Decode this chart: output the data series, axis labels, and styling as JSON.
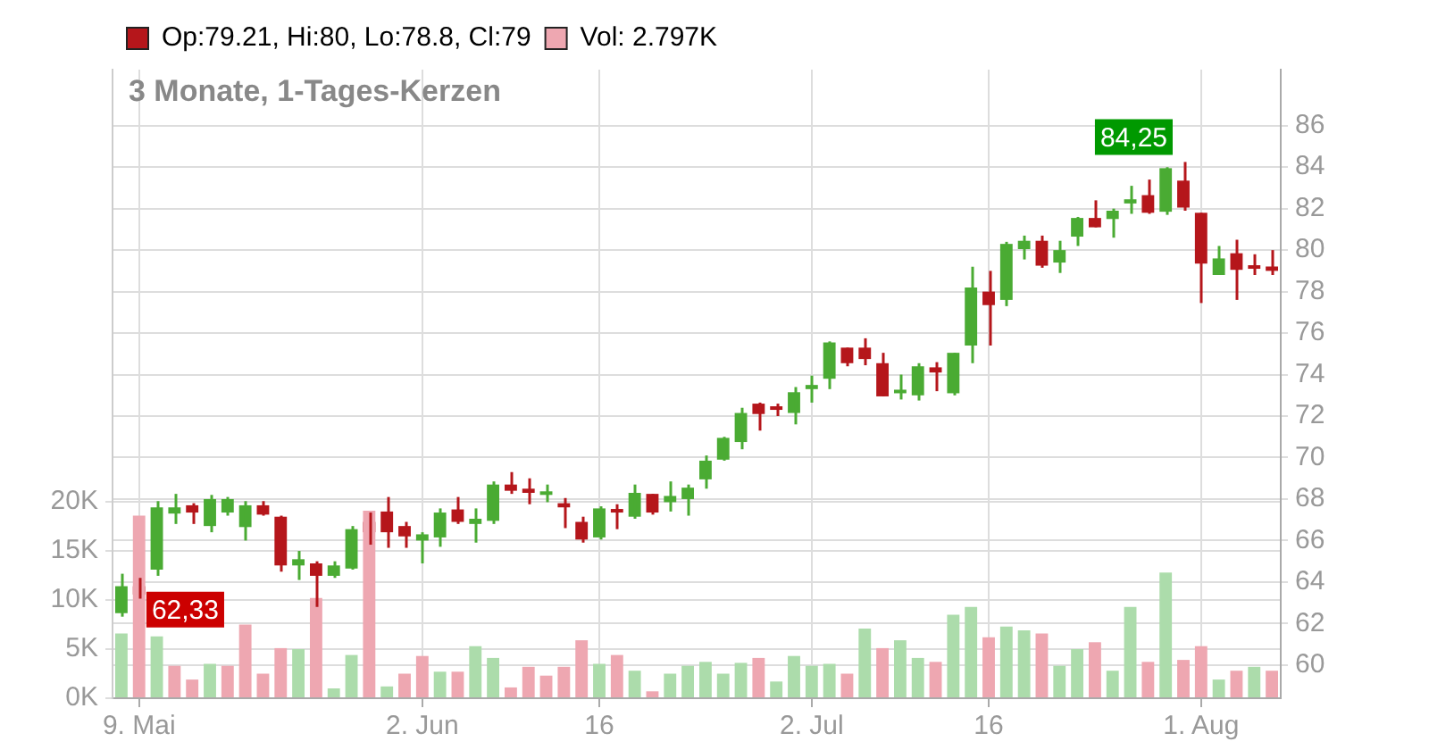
{
  "chart_data": {
    "type": "candlestick",
    "title": "3 Monate, 1-Tages-Kerzen",
    "categories": [
      null,
      "9. Mai",
      null,
      null,
      null,
      null,
      null,
      null,
      null,
      null,
      null,
      null,
      null,
      null,
      null,
      null,
      null,
      "2. Jun",
      null,
      null,
      null,
      null,
      null,
      null,
      null,
      null,
      null,
      "16",
      null,
      null,
      null,
      null,
      null,
      null,
      null,
      null,
      null,
      null,
      null,
      "2. Jul",
      null,
      null,
      null,
      null,
      null,
      null,
      null,
      null,
      null,
      "16",
      null,
      null,
      null,
      null,
      null,
      null,
      null,
      null,
      null,
      null,
      null,
      "1. Aug",
      null,
      null,
      null,
      null
    ],
    "series": [
      {
        "name": "Op:79.21, Hi:80, Lo:78.8, Cl:79",
        "type": "candlestick",
        "ohlc": [
          [
            62.5,
            64.4,
            62.33,
            63.8
          ],
          [
            63.8,
            64.2,
            63.2,
            63.4
          ],
          [
            64.6,
            67.9,
            64.3,
            67.6
          ],
          [
            67.3,
            68.25,
            66.8,
            67.6
          ],
          [
            67.7,
            67.8,
            66.8,
            67.35
          ],
          [
            66.7,
            68.2,
            66.4,
            68.0
          ],
          [
            67.35,
            68.1,
            67.2,
            68.0
          ],
          [
            66.65,
            67.9,
            66.0,
            67.7
          ],
          [
            67.7,
            67.9,
            67.2,
            67.25
          ],
          [
            67.15,
            67.2,
            64.5,
            64.8
          ],
          [
            64.8,
            65.5,
            64.1,
            65.1
          ],
          [
            64.9,
            65.0,
            62.8,
            64.3
          ],
          [
            64.3,
            65.0,
            64.2,
            64.8
          ],
          [
            64.65,
            66.7,
            64.6,
            66.55
          ],
          [
            66.9,
            67.35,
            65.8,
            66.4
          ],
          [
            67.4,
            68.1,
            65.65,
            66.4
          ],
          [
            66.7,
            66.9,
            65.65,
            66.2
          ],
          [
            66.0,
            66.4,
            64.9,
            66.3
          ],
          [
            66.15,
            67.55,
            65.7,
            67.35
          ],
          [
            67.5,
            68.1,
            66.8,
            66.9
          ],
          [
            66.8,
            67.55,
            65.9,
            67.05
          ],
          [
            66.95,
            68.85,
            66.8,
            68.7
          ],
          [
            68.7,
            69.3,
            68.25,
            68.4
          ],
          [
            68.5,
            69.0,
            67.75,
            68.3
          ],
          [
            68.2,
            68.7,
            67.85,
            68.3
          ],
          [
            67.8,
            68.05,
            66.6,
            67.6
          ],
          [
            66.9,
            67.15,
            65.9,
            66.05
          ],
          [
            66.15,
            67.65,
            66.05,
            67.55
          ],
          [
            67.4,
            67.75,
            66.55,
            67.35
          ],
          [
            67.15,
            68.7,
            67.05,
            68.3
          ],
          [
            68.25,
            68.25,
            67.25,
            67.35
          ],
          [
            67.85,
            68.85,
            67.4,
            68.15
          ],
          [
            68.0,
            68.7,
            67.2,
            68.55
          ],
          [
            68.95,
            70.1,
            68.5,
            69.85
          ],
          [
            69.9,
            71.0,
            69.85,
            70.95
          ],
          [
            70.75,
            72.4,
            70.4,
            72.15
          ],
          [
            72.6,
            72.65,
            71.3,
            72.1
          ],
          [
            72.35,
            72.6,
            72.0,
            72.3
          ],
          [
            72.15,
            73.4,
            71.6,
            73.15
          ],
          [
            73.3,
            73.95,
            72.65,
            73.5
          ],
          [
            73.8,
            75.6,
            73.3,
            75.55
          ],
          [
            75.3,
            75.3,
            74.4,
            74.55
          ],
          [
            75.3,
            75.75,
            74.45,
            74.75
          ],
          [
            74.55,
            75.05,
            72.95,
            72.95
          ],
          [
            73.1,
            74.0,
            72.8,
            73.15
          ],
          [
            73.0,
            74.55,
            72.75,
            74.4
          ],
          [
            74.35,
            74.6,
            73.2,
            74.1
          ],
          [
            73.1,
            75.05,
            73.0,
            75.05
          ],
          [
            75.4,
            79.2,
            74.55,
            78.2
          ],
          [
            78.0,
            79.0,
            75.4,
            77.35
          ],
          [
            77.6,
            80.4,
            77.3,
            80.3
          ],
          [
            80.05,
            80.7,
            79.55,
            80.45
          ],
          [
            80.45,
            80.7,
            79.15,
            79.25
          ],
          [
            79.4,
            80.45,
            78.9,
            80.0
          ],
          [
            80.65,
            81.6,
            80.2,
            81.55
          ],
          [
            81.55,
            82.4,
            81.1,
            81.1
          ],
          [
            81.5,
            82.0,
            80.6,
            81.9
          ],
          [
            82.25,
            83.1,
            81.75,
            82.45
          ],
          [
            82.65,
            83.4,
            81.75,
            81.8
          ],
          [
            81.85,
            84.0,
            81.7,
            83.95
          ],
          [
            83.35,
            84.25,
            81.9,
            82.05
          ],
          [
            81.8,
            81.8,
            77.45,
            79.35
          ],
          [
            78.8,
            80.2,
            78.8,
            79.6
          ],
          [
            79.85,
            80.5,
            77.6,
            79.05
          ],
          [
            79.25,
            79.8,
            78.8,
            79.1
          ],
          [
            79.21,
            80,
            78.8,
            79
          ]
        ],
        "colors": [
          "#4aab33",
          "#b5161b",
          "#4aab33",
          "#4aab33",
          "#b5161b",
          "#4aab33",
          "#4aab33",
          "#4aab33",
          "#b5161b",
          "#b5161b",
          "#4aab33",
          "#b5161b",
          "#4aab33",
          "#4aab33",
          "#b5161b",
          "#b5161b",
          "#b5161b",
          "#4aab33",
          "#4aab33",
          "#b5161b",
          "#4aab33",
          "#4aab33",
          "#b5161b",
          "#b5161b",
          "#4aab33",
          "#b5161b",
          "#b5161b",
          "#4aab33",
          "#b5161b",
          "#4aab33",
          "#b5161b",
          "#4aab33",
          "#4aab33",
          "#4aab33",
          "#4aab33",
          "#4aab33",
          "#b5161b",
          "#b5161b",
          "#4aab33",
          "#4aab33",
          "#4aab33",
          "#b5161b",
          "#b5161b",
          "#b5161b",
          "#4aab33",
          "#4aab33",
          "#b5161b",
          "#4aab33",
          "#4aab33",
          "#b5161b",
          "#4aab33",
          "#4aab33",
          "#b5161b",
          "#4aab33",
          "#4aab33",
          "#b5161b",
          "#4aab33",
          "#4aab33",
          "#b5161b",
          "#4aab33",
          "#b5161b",
          "#b5161b",
          "#4aab33",
          "#b5161b",
          "#b5161b",
          "#b5161b"
        ]
      },
      {
        "name": "Vol: 2.797K",
        "type": "bar",
        "axis": "y2",
        "values": [
          6.6,
          18.6,
          6.3,
          3.3,
          1.9,
          3.5,
          3.3,
          7.5,
          2.5,
          5.1,
          5.0,
          10.2,
          1.0,
          4.4,
          19.1,
          1.2,
          2.5,
          4.3,
          2.7,
          2.7,
          5.3,
          4.1,
          1.1,
          3.2,
          2.3,
          3.2,
          5.9,
          3.5,
          4.4,
          2.8,
          0.7,
          2.5,
          3.3,
          3.7,
          2.5,
          3.6,
          4.1,
          1.7,
          4.3,
          3.3,
          3.5,
          2.5,
          7.1,
          5.1,
          5.9,
          4.1,
          3.7,
          8.5,
          9.3,
          6.2,
          7.3,
          6.9,
          6.6,
          3.3,
          5.0,
          5.7,
          2.8,
          9.3,
          3.7,
          12.8,
          3.9,
          5.3,
          1.9,
          2.8,
          3.2,
          2.8
        ],
        "colors": [
          "#acdcab",
          "#eea7b1",
          "#acdcab",
          "#eea7b1",
          "#eea7b1",
          "#acdcab",
          "#eea7b1",
          "#eea7b1",
          "#eea7b1",
          "#eea7b1",
          "#acdcab",
          "#eea7b1",
          "#acdcab",
          "#acdcab",
          "#eea7b1",
          "#acdcab",
          "#eea7b1",
          "#eea7b1",
          "#acdcab",
          "#eea7b1",
          "#acdcab",
          "#acdcab",
          "#eea7b1",
          "#eea7b1",
          "#eea7b1",
          "#eea7b1",
          "#eea7b1",
          "#acdcab",
          "#eea7b1",
          "#acdcab",
          "#eea7b1",
          "#acdcab",
          "#acdcab",
          "#acdcab",
          "#acdcab",
          "#acdcab",
          "#eea7b1",
          "#acdcab",
          "#acdcab",
          "#acdcab",
          "#acdcab",
          "#eea7b1",
          "#acdcab",
          "#eea7b1",
          "#acdcab",
          "#acdcab",
          "#eea7b1",
          "#acdcab",
          "#acdcab",
          "#eea7b1",
          "#acdcab",
          "#acdcab",
          "#eea7b1",
          "#acdcab",
          "#acdcab",
          "#eea7b1",
          "#acdcab",
          "#acdcab",
          "#eea7b1",
          "#acdcab",
          "#eea7b1",
          "#eea7b1",
          "#acdcab",
          "#eea7b1",
          "#acdcab",
          "#eea7b1"
        ]
      }
    ],
    "ylim": [
      58.4,
      88.7
    ],
    "yticks": [
      60,
      62,
      64,
      66,
      68,
      70,
      72,
      74,
      76,
      78,
      80,
      82,
      84,
      86
    ],
    "y2lim": [
      0,
      64
    ],
    "y2ticks": [
      {
        "value": 0,
        "label": "0K"
      },
      {
        "value": 5,
        "label": "5K"
      },
      {
        "value": 10,
        "label": "10K"
      },
      {
        "value": 15,
        "label": "15K"
      },
      {
        "value": 20,
        "label": "20K"
      }
    ],
    "annotations": [
      "62,33",
      "84,25"
    ],
    "grid": true,
    "legend": "top left"
  }
}
